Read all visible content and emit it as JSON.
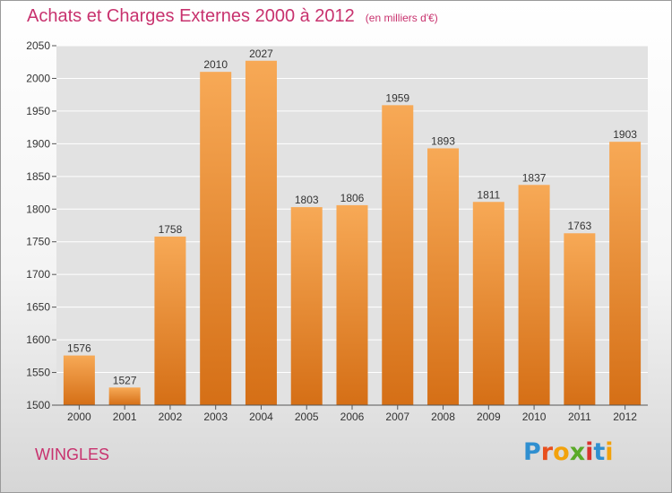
{
  "page": {
    "title": "Achats et Charges Externes 2000 à 2012",
    "subtitle": "(en milliers d'€)",
    "commune": "WINGLES",
    "logo_letters": [
      {
        "char": "P",
        "color": "#2f8fd0"
      },
      {
        "char": "r",
        "color": "#e8501e"
      },
      {
        "char": "o",
        "color": "#f2a20c"
      },
      {
        "char": "x",
        "color": "#5aaa28"
      },
      {
        "char": "i",
        "color": "#d9322d"
      },
      {
        "char": "t",
        "color": "#2f8fd0"
      },
      {
        "char": "i",
        "color": "#f2a20c"
      }
    ]
  },
  "chart_data": {
    "type": "bar",
    "title": "Achats et Charges Externes 2000 à 2012",
    "subtitle": "(en milliers d'€)",
    "categories": [
      "2000",
      "2001",
      "2002",
      "2003",
      "2004",
      "2005",
      "2006",
      "2007",
      "2008",
      "2009",
      "2010",
      "2011",
      "2012"
    ],
    "values": [
      1576,
      1527,
      1758,
      2010,
      2027,
      1803,
      1806,
      1959,
      1893,
      1811,
      1837,
      1763,
      1903
    ],
    "data_labels": [
      "1576",
      "1527",
      "1758",
      "2010",
      "2027",
      "1803",
      "1806",
      "1959",
      "1893",
      "1811",
      "1837",
      "1763",
      "1903"
    ],
    "y_ticks": [
      1500,
      1550,
      1600,
      1650,
      1700,
      1750,
      1800,
      1850,
      1900,
      1950,
      2000,
      2050
    ],
    "y_tick_labels": [
      "1500",
      "1550",
      "1600",
      "1650",
      "1700",
      "1750",
      "1800",
      "1850",
      "1900",
      "1950",
      "2000",
      "2050"
    ],
    "ylim": [
      1500,
      2050
    ],
    "xlabel": "",
    "ylabel": "",
    "grid": "horizontal",
    "bar_color_light": "#f7a956",
    "bar_color_dark": "#d56f16",
    "grid_color": "#ffffff",
    "plot_background": "#e2e2e2"
  }
}
